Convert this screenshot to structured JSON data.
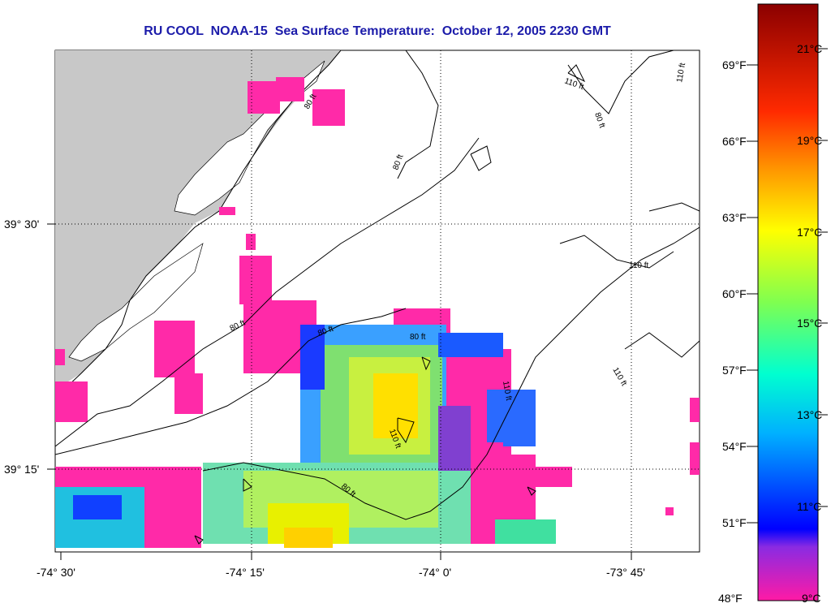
{
  "title": "RU COOL  NOAA-15  Sea Surface Temperature:  October 12, 2005 2230 GMT",
  "lat_labels": [
    "39° 30'",
    "39° 15'"
  ],
  "lon_labels": [
    "-74° 30'",
    "-74° 15'",
    "-74° 0'",
    "-73° 45'"
  ],
  "fahrenheit_labels": [
    "69°F",
    "66°F",
    "63°F",
    "60°F",
    "57°F",
    "54°F",
    "51°F",
    "48°F"
  ],
  "celsius_labels": [
    "21°C",
    "19°C",
    "17°C",
    "15°C",
    "13°C",
    "11°C",
    "9°C"
  ],
  "contour_labels": [
    "110 ft",
    "80 ft",
    "80 ft",
    "80 ft",
    "110 ft",
    "110 ft",
    "80 ft",
    "80 ft",
    "80 ft",
    "110 ft",
    "110 ft",
    "110 ft",
    "110 ft",
    "80 ft"
  ],
  "colors": {
    "land": "#c8c8c8",
    "no_data": "#ffffff",
    "cold_pink": "#ff2aa8",
    "title": "#1c1caa"
  }
}
